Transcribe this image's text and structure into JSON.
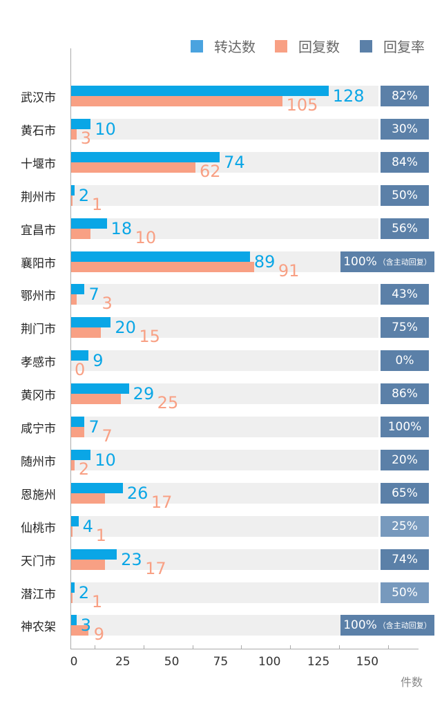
{
  "chart_data": {
    "type": "bar",
    "orientation": "horizontal",
    "xlabel": "件数",
    "xlim": [
      0,
      170
    ],
    "xticks": [
      "0",
      "25",
      "50",
      "75",
      "100",
      "125",
      "150"
    ],
    "legend": [
      "转达数",
      "回复数",
      "回复率"
    ],
    "legend_position": "top-right",
    "colors": {
      "forwarded": "#0aa6e6",
      "replied": "#f8a084",
      "rate": "#5b80a8",
      "rate_light": "#7799bd"
    },
    "categories": [
      "武汉市",
      "黄石市",
      "十堰市",
      "荆州市",
      "宜昌市",
      "襄阳市",
      "鄂州市",
      "荆门市",
      "孝感市",
      "黄冈市",
      "咸宁市",
      "随州市",
      "恩施州",
      "仙桃市",
      "天门市",
      "潜江市",
      "神农架"
    ],
    "series": [
      {
        "name": "转达数",
        "values": [
          128,
          10,
          74,
          2,
          18,
          89,
          7,
          20,
          9,
          29,
          7,
          10,
          26,
          4,
          23,
          2,
          3
        ]
      },
      {
        "name": "回复数",
        "values": [
          105,
          3,
          62,
          1,
          10,
          91,
          3,
          15,
          0,
          25,
          7,
          2,
          17,
          1,
          17,
          1,
          9
        ]
      }
    ],
    "rates": [
      "82%",
      "30%",
      "84%",
      "50%",
      "56%",
      "100%",
      "43%",
      "75%",
      "0%",
      "86%",
      "100%",
      "20%",
      "65%",
      "25%",
      "74%",
      "50%",
      "100%"
    ],
    "rate_notes": [
      "",
      "",
      "",
      "",
      "",
      "（含主动回复）",
      "",
      "",
      "",
      "",
      "",
      "",
      "",
      "",
      "",
      "",
      "（含主动回复）"
    ],
    "rate_light": [
      false,
      false,
      false,
      false,
      false,
      false,
      false,
      false,
      false,
      false,
      false,
      false,
      false,
      true,
      false,
      true,
      false
    ]
  }
}
